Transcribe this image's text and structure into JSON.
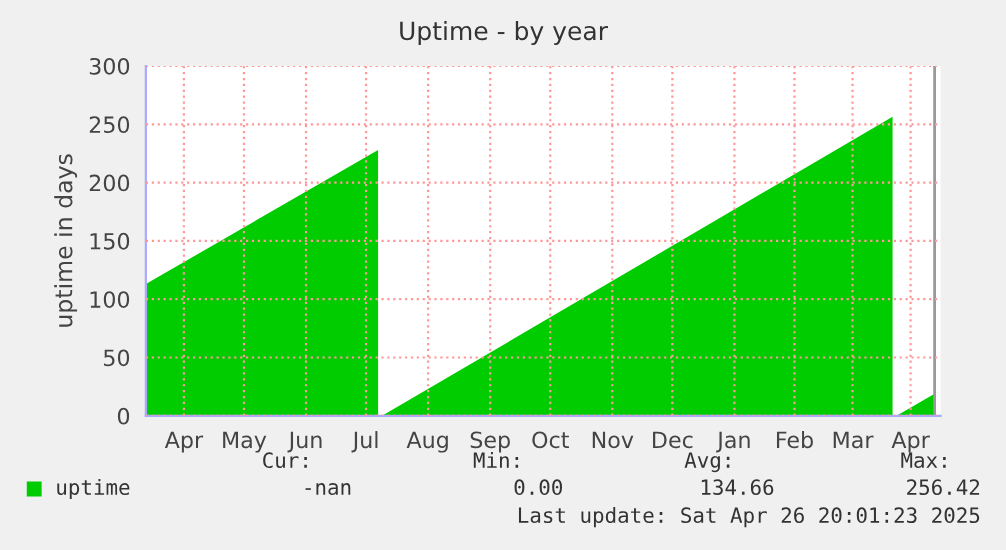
{
  "chart_data": {
    "type": "area",
    "title": "Uptime - by year",
    "ylabel": "uptime in days",
    "series": [
      {
        "name": "uptime",
        "color": "#00cc00",
        "x": [
          "2024-03-28",
          "2024-07-22",
          "2024-07-23",
          "2024-07-24",
          "2025-04-05",
          "2025-04-06",
          "2025-04-07",
          "2025-04-26"
        ],
        "values": [
          113,
          228,
          null,
          0,
          256.42,
          null,
          0,
          19
        ]
      }
    ],
    "xlim": [
      "2024-03-28",
      "2025-04-29"
    ],
    "xticks": [
      {
        "value": "2024-04-16",
        "label": "Apr"
      },
      {
        "value": "2024-05-16",
        "label": "May"
      },
      {
        "value": "2024-06-16",
        "label": "Jun"
      },
      {
        "value": "2024-07-16",
        "label": "Jul"
      },
      {
        "value": "2024-08-16",
        "label": "Aug"
      },
      {
        "value": "2024-09-16",
        "label": "Sep"
      },
      {
        "value": "2024-10-16",
        "label": "Oct"
      },
      {
        "value": "2024-11-16",
        "label": "Nov"
      },
      {
        "value": "2024-12-16",
        "label": "Dec"
      },
      {
        "value": "2025-01-16",
        "label": "Jan"
      },
      {
        "value": "2025-02-15",
        "label": "Feb"
      },
      {
        "value": "2025-03-16",
        "label": "Mar"
      },
      {
        "value": "2025-04-14",
        "label": "Apr"
      }
    ],
    "ylim": [
      0,
      300
    ],
    "yticks": [
      0,
      50,
      100,
      150,
      200,
      250,
      300
    ],
    "grid": true,
    "legend": "bottom",
    "ref_lines": [
      {
        "axis": "x",
        "value": "2025-04-26",
        "color": "#999999"
      }
    ],
    "annotations": [
      "Cur:",
      "Min:",
      "Avg:",
      "Max:",
      "-nan",
      "0.00",
      "134.66",
      "256.42",
      "Last update: Sat Apr 26 20:01:23 2025"
    ]
  }
}
